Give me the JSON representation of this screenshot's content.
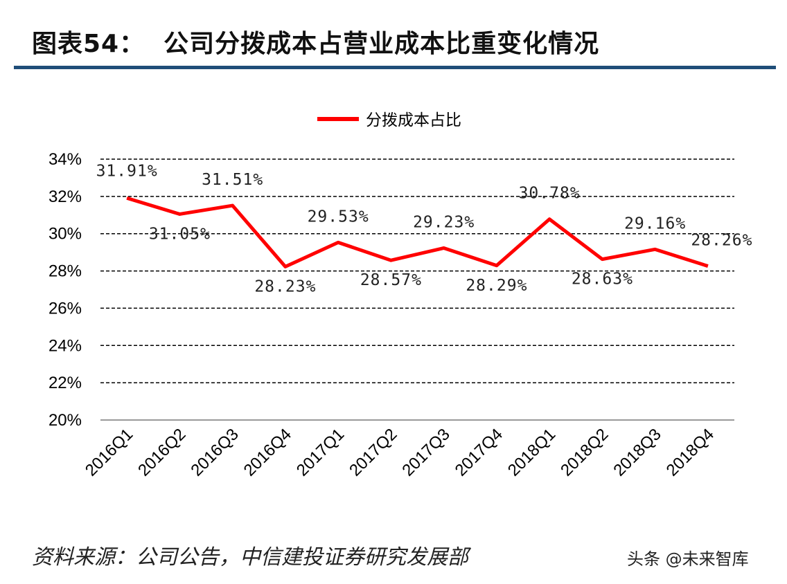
{
  "header": {
    "title": "图表54：  公司分拨成本占营业成本比重变化情况"
  },
  "footer": {
    "source": "资料来源：公司公告，中信建投证券研究发展部",
    "watermark": "头条 @未来智库"
  },
  "chart_data": {
    "type": "line",
    "categories": [
      "2016Q1",
      "2016Q2",
      "2016Q3",
      "2016Q4",
      "2017Q1",
      "2017Q2",
      "2017Q3",
      "2017Q4",
      "2018Q1",
      "2018Q2",
      "2018Q3",
      "2018Q4"
    ],
    "series": [
      {
        "name": "分拨成本占比",
        "values": [
          31.91,
          31.05,
          31.51,
          28.23,
          29.53,
          28.57,
          29.23,
          28.29,
          30.78,
          28.63,
          29.16,
          28.26
        ],
        "color": "#ff0000"
      }
    ],
    "data_labels": [
      "31.91%",
      "31.05%",
      "31.51%",
      "28.23%",
      "29.53%",
      "28.57%",
      "29.23%",
      "28.29%",
      "30.78%",
      "28.63%",
      "29.16%",
      "28.26%"
    ],
    "ylim": [
      20,
      34
    ],
    "yticks": [
      "20%",
      "22%",
      "24%",
      "26%",
      "28%",
      "30%",
      "32%",
      "34%"
    ],
    "grid": true,
    "legend": "top"
  }
}
